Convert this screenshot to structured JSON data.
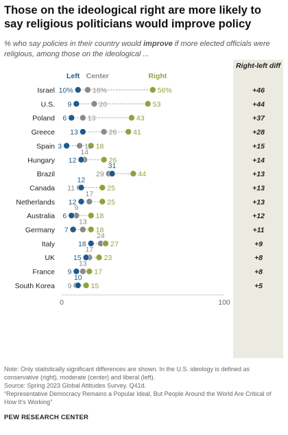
{
  "title": "Those on the ideological right are more likely to say religious politicians would improve policy",
  "subtitle": {
    "before": "% who say policies in their country would ",
    "emphasis": "improve",
    "after": " if more elected officials were religious, among those on the ideological ..."
  },
  "diff_header": "Right-left diff",
  "notes": {
    "note": "Note: Only statistically significant differences are shown. In the U.S. ideology is defined as conservative (right), moderate (center) and liberal (left).",
    "source": "Source: Spring 2023 Global Attitudes Survey. Q41d.",
    "report": "“Representative Democracy Remains a Popular Ideal, But People Around the World Are Critical of How It’s Working”"
  },
  "footer": "PEW RESEARCH CENTER",
  "colors": {
    "left": "#1f5a8c",
    "center": "#8a8a8a",
    "right": "#8fa33a",
    "diff_band": "#ecebe2"
  },
  "chart_data": {
    "type": "scatter",
    "subtype": "dot-plot",
    "xlim": [
      0,
      100
    ],
    "x_ticks": [
      "0",
      "100"
    ],
    "series": [
      {
        "name": "Left",
        "key": "left"
      },
      {
        "name": "Center",
        "key": "center"
      },
      {
        "name": "Right",
        "key": "right"
      }
    ],
    "rows": [
      {
        "country": "Israel",
        "left": 10,
        "center": 16,
        "right": 56,
        "diff": "+46",
        "left_label": "10%",
        "center_label": "16%",
        "right_label": "56%"
      },
      {
        "country": "U.S.",
        "left": 9,
        "center": 20,
        "right": 53,
        "diff": "+44",
        "left_label": "9",
        "center_label": "20",
        "right_label": "53"
      },
      {
        "country": "Poland",
        "left": 6,
        "center": 13,
        "right": 43,
        "diff": "+37",
        "left_label": "6",
        "center_label": "13",
        "right_label": "43"
      },
      {
        "country": "Greece",
        "left": 13,
        "center": 26,
        "right": 41,
        "diff": "+28",
        "left_label": "13",
        "center_label": "26",
        "right_label": "41"
      },
      {
        "country": "Spain",
        "left": 3,
        "center": 11,
        "right": 18,
        "diff": "+15",
        "left_label": "3",
        "center_label": "11",
        "right_label": "18"
      },
      {
        "country": "Hungary",
        "left": 12,
        "center": 14,
        "right": 26,
        "diff": "+14",
        "left_label": "12",
        "center_label": "14",
        "right_label": "26"
      },
      {
        "country": "Brazil",
        "left": 31,
        "center": 29,
        "right": 44,
        "diff": "+13",
        "left_label": "31",
        "center_label": "29",
        "right_label": "44"
      },
      {
        "country": "Canada",
        "left": 12,
        "center": 11,
        "right": 25,
        "diff": "+13",
        "left_label": "12",
        "center_label": "11",
        "right_label": "25"
      },
      {
        "country": "Netherlands",
        "left": 12,
        "center": 17,
        "right": 25,
        "diff": "+13",
        "left_label": "12",
        "center_label": "17",
        "right_label": "25"
      },
      {
        "country": "Australia",
        "left": 6,
        "center": 9,
        "right": 18,
        "diff": "+12",
        "left_label": "6",
        "center_label": "9",
        "right_label": "18"
      },
      {
        "country": "Germany",
        "left": 7,
        "center": 13,
        "right": 18,
        "diff": "+11",
        "left_label": "7",
        "center_label": "13",
        "right_label": "18"
      },
      {
        "country": "Italy",
        "left": 18,
        "center": 24,
        "right": 27,
        "diff": "+9",
        "left_label": "18",
        "center_label": "24",
        "right_label": "27"
      },
      {
        "country": "UK",
        "left": 15,
        "center": 17,
        "right": 23,
        "diff": "+8",
        "left_label": "15",
        "center_label": "17",
        "right_label": "23"
      },
      {
        "country": "France",
        "left": 9,
        "center": 13,
        "right": 17,
        "diff": "+8",
        "left_label": "9",
        "center_label": "13",
        "right_label": "17"
      },
      {
        "country": "South Korea",
        "left": 10,
        "center": 9,
        "right": 15,
        "diff": "+5",
        "left_label": "10",
        "center_label": "9",
        "right_label": "15"
      }
    ]
  }
}
